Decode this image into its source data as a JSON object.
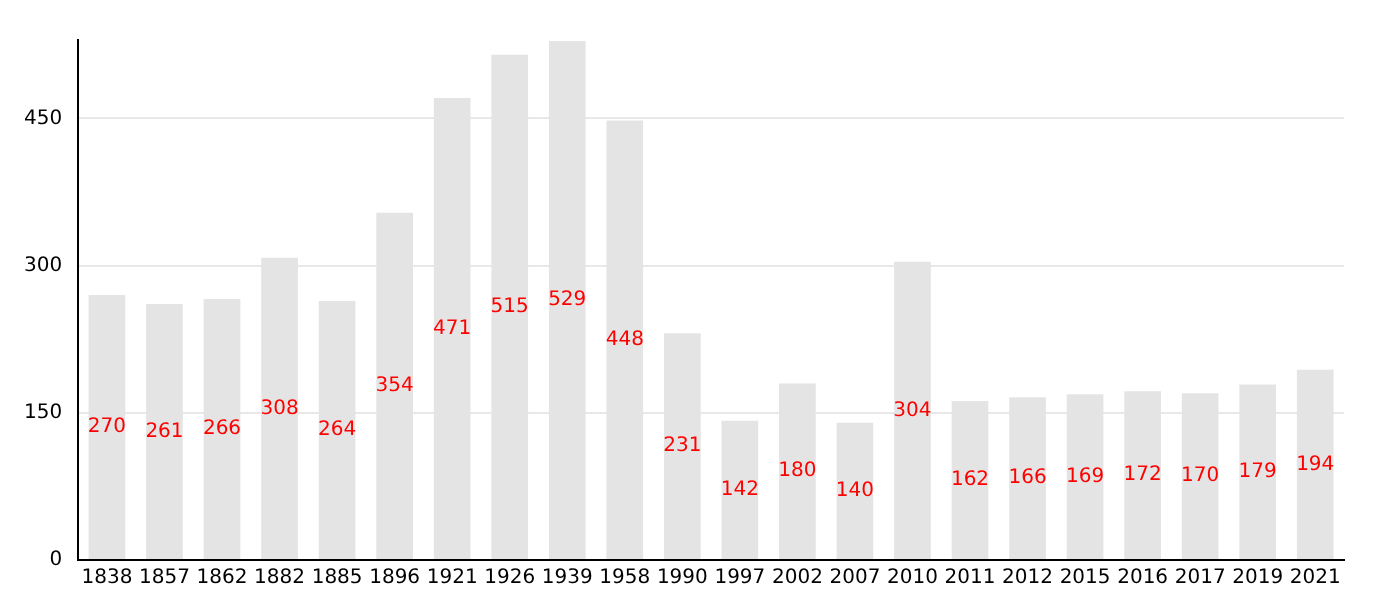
{
  "chart_data": {
    "type": "bar",
    "categories": [
      "1838",
      "1857",
      "1862",
      "1882",
      "1885",
      "1896",
      "1921",
      "1926",
      "1939",
      "1958",
      "1990",
      "1997",
      "2002",
      "2007",
      "2010",
      "2011",
      "2012",
      "2015",
      "2016",
      "2017",
      "2019",
      "2021"
    ],
    "values": [
      270,
      261,
      266,
      308,
      264,
      354,
      471,
      515,
      529,
      448,
      231,
      142,
      180,
      140,
      304,
      162,
      166,
      169,
      172,
      170,
      179,
      194
    ],
    "color": "#e4e4e4",
    "ylim": [
      0,
      530
    ],
    "yticks": [
      0,
      150,
      300,
      450
    ],
    "grid": "y",
    "data_labels": true,
    "legend": false
  }
}
